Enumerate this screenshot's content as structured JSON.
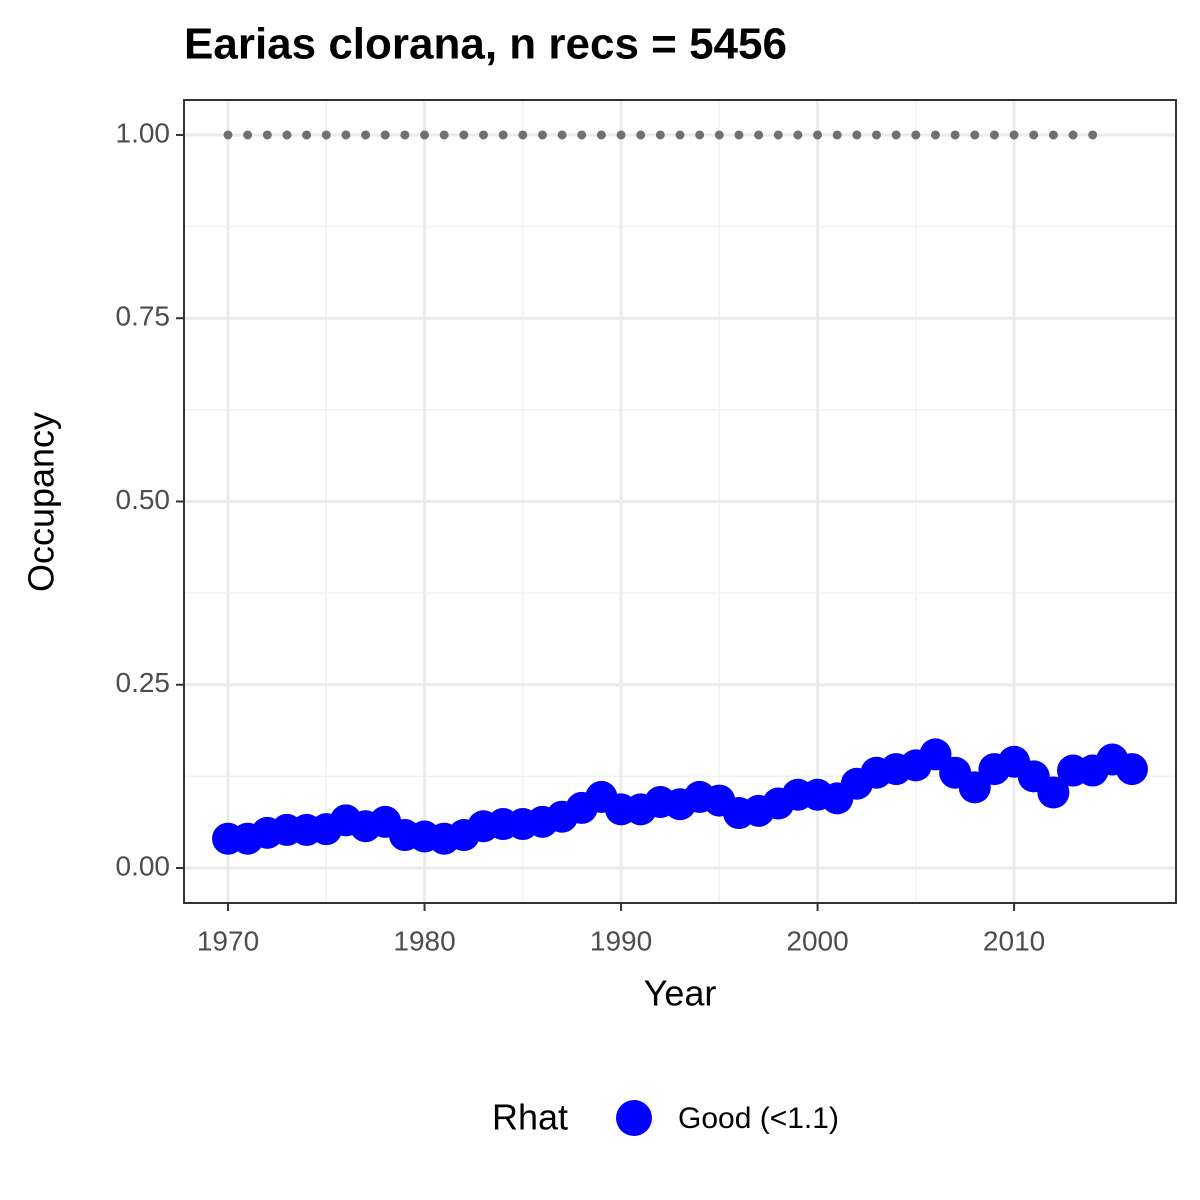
{
  "chart_data": {
    "type": "line",
    "title": "Earias clorana, n recs = 5456",
    "x_label": "Year",
    "y_label": "Occupancy",
    "legend_title": "Rhat",
    "legend_position": "bottom",
    "grid": true,
    "x": [
      1970,
      1971,
      1972,
      1973,
      1974,
      1975,
      1976,
      1977,
      1978,
      1979,
      1980,
      1981,
      1982,
      1983,
      1984,
      1985,
      1986,
      1987,
      1988,
      1989,
      1990,
      1991,
      1992,
      1993,
      1994,
      1995,
      1996,
      1997,
      1998,
      1999,
      2000,
      2001,
      2002,
      2003,
      2004,
      2005,
      2006,
      2007,
      2008,
      2009,
      2010,
      2011,
      2012,
      2013,
      2014,
      2015,
      2016
    ],
    "series": [
      {
        "name": "Good (<1.1)",
        "color": "#0000ff",
        "values": [
          0.04,
          0.04,
          0.048,
          0.052,
          0.052,
          0.053,
          0.065,
          0.057,
          0.063,
          0.045,
          0.043,
          0.04,
          0.045,
          0.057,
          0.06,
          0.06,
          0.063,
          0.07,
          0.082,
          0.097,
          0.08,
          0.08,
          0.09,
          0.087,
          0.097,
          0.092,
          0.075,
          0.078,
          0.088,
          0.1,
          0.1,
          0.095,
          0.115,
          0.13,
          0.135,
          0.14,
          0.155,
          0.13,
          0.11,
          0.135,
          0.145,
          0.125,
          0.103,
          0.133,
          0.133,
          0.148,
          0.135
        ]
      }
    ],
    "reference_line": {
      "x": [
        1970,
        2015
      ],
      "value": 1,
      "color": "#707070"
    },
    "xlim": [
      1967.76,
      2018.24
    ],
    "ylim": [
      -0.0477,
      1.0477
    ],
    "xticks": [
      1970,
      1980,
      1990,
      2000,
      2010
    ],
    "yticks": [
      {
        "value": 0,
        "label": "0.00"
      },
      {
        "value": 0.25,
        "label": "0.25"
      },
      {
        "value": 0.5,
        "label": "0.50"
      },
      {
        "value": 0.75,
        "label": "0.75"
      },
      {
        "value": 1,
        "label": "1.00"
      }
    ]
  }
}
